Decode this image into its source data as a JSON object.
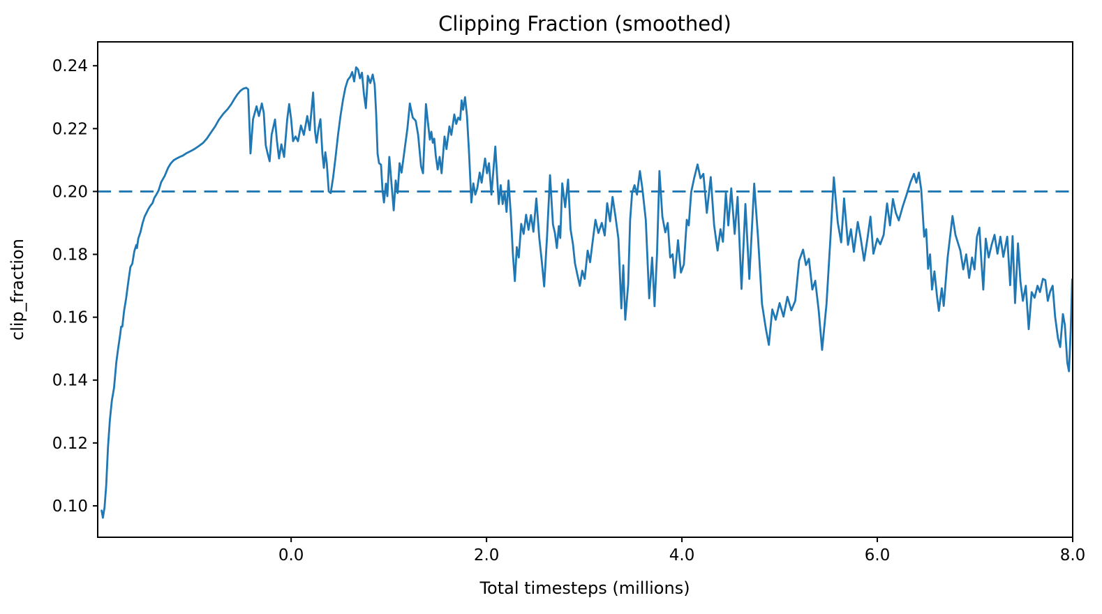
{
  "figure": {
    "background": "#ffffff",
    "spine_color": "#000000",
    "text_color": "#000000"
  },
  "chart_data": {
    "type": "line",
    "title": "Clipping Fraction (smoothed)",
    "xlabel": "Total timesteps (millions)",
    "ylabel": "clip_fraction",
    "xlim": [
      -1.98,
      8.0
    ],
    "ylim": [
      0.09,
      0.2476
    ],
    "grid": false,
    "legend_position": "none",
    "xticks": {
      "values": [
        0.0,
        2.0,
        4.0,
        6.0,
        8.0
      ],
      "labels": [
        "0.0",
        "2.0",
        "4.0",
        "6.0",
        "8.0"
      ]
    },
    "yticks": {
      "values": [
        0.1,
        0.12,
        0.14,
        0.16,
        0.18,
        0.2,
        0.22,
        0.24
      ],
      "labels": [
        "0.10",
        "0.12",
        "0.14",
        "0.16",
        "0.18",
        "0.20",
        "0.22",
        "0.24"
      ]
    },
    "reference_line": {
      "y": 0.2,
      "style": "dashed",
      "color": "#1f77b4",
      "width": 2.8,
      "dash": [
        19,
        11.5
      ]
    },
    "series": [
      {
        "name": "clip_fraction",
        "color": "#1f77b4",
        "width": 2.8,
        "x": [
          -1.94,
          -1.927,
          -1.91,
          -1.893,
          -1.875,
          -1.855,
          -1.835,
          -1.813,
          -1.79,
          -1.771,
          -1.75,
          -1.74,
          -1.728,
          -1.71,
          -1.689,
          -1.668,
          -1.645,
          -1.626,
          -1.605,
          -1.585,
          -1.578,
          -1.565,
          -1.543,
          -1.52,
          -1.5,
          -1.481,
          -1.46,
          -1.44,
          -1.419,
          -1.4,
          -1.38,
          -1.357,
          -1.33,
          -1.295,
          -1.26,
          -1.233,
          -1.2,
          -1.171,
          -1.14,
          -1.109,
          -1.07,
          -1.026,
          -0.99,
          -0.943,
          -0.9,
          -0.861,
          -0.82,
          -0.778,
          -0.74,
          -0.695,
          -0.65,
          -0.612,
          -0.58,
          -0.55,
          -0.52,
          -0.49,
          -0.46,
          -0.44,
          -0.416,
          -0.39,
          -0.354,
          -0.33,
          -0.3,
          -0.28,
          -0.26,
          -0.24,
          -0.22,
          -0.2,
          -0.165,
          -0.145,
          -0.124,
          -0.1,
          -0.072,
          -0.04,
          -0.02,
          0.0,
          0.02,
          0.045,
          0.07,
          0.1,
          0.13,
          0.165,
          0.19,
          0.225,
          0.245,
          0.26,
          0.28,
          0.3,
          0.32,
          0.335,
          0.35,
          0.365,
          0.385,
          0.405,
          0.43,
          0.455,
          0.48,
          0.505,
          0.53,
          0.555,
          0.58,
          0.605,
          0.625,
          0.645,
          0.665,
          0.685,
          0.705,
          0.725,
          0.745,
          0.765,
          0.785,
          0.81,
          0.835,
          0.855,
          0.87,
          0.885,
          0.9,
          0.92,
          0.935,
          0.95,
          0.97,
          0.985,
          1.005,
          1.03,
          1.05,
          1.07,
          1.09,
          1.11,
          1.13,
          1.16,
          1.19,
          1.215,
          1.245,
          1.275,
          1.3,
          1.33,
          1.35,
          1.38,
          1.4,
          1.42,
          1.435,
          1.45,
          1.465,
          1.48,
          1.5,
          1.52,
          1.54,
          1.57,
          1.59,
          1.62,
          1.64,
          1.67,
          1.69,
          1.71,
          1.73,
          1.745,
          1.76,
          1.78,
          1.8,
          1.82,
          1.845,
          1.865,
          1.885,
          1.905,
          1.93,
          1.95,
          1.985,
          2.005,
          2.025,
          2.05,
          2.09,
          2.125,
          2.145,
          2.165,
          2.185,
          2.205,
          2.225,
          2.25,
          2.27,
          2.29,
          2.31,
          2.33,
          2.355,
          2.38,
          2.405,
          2.43,
          2.455,
          2.48,
          2.51,
          2.54,
          2.565,
          2.59,
          2.62,
          2.65,
          2.68,
          2.7,
          2.72,
          2.74,
          2.755,
          2.775,
          2.805,
          2.835,
          2.86,
          2.885,
          2.905,
          2.93,
          2.955,
          2.98,
          3.005,
          3.035,
          3.06,
          3.09,
          3.115,
          3.145,
          3.18,
          3.21,
          3.235,
          3.265,
          3.29,
          3.32,
          3.35,
          3.38,
          3.4,
          3.42,
          3.45,
          3.47,
          3.49,
          3.515,
          3.54,
          3.57,
          3.595,
          3.63,
          3.665,
          3.695,
          3.72,
          3.745,
          3.77,
          3.8,
          3.83,
          3.855,
          3.88,
          3.905,
          3.925,
          3.96,
          3.99,
          4.02,
          4.05,
          4.07,
          4.095,
          4.125,
          4.16,
          4.19,
          4.22,
          4.255,
          4.295,
          4.33,
          4.365,
          4.395,
          4.42,
          4.45,
          4.475,
          4.505,
          4.54,
          4.57,
          4.61,
          4.65,
          4.69,
          4.74,
          4.78,
          4.82,
          4.86,
          4.89,
          4.925,
          4.96,
          5.0,
          5.04,
          5.08,
          5.12,
          5.16,
          5.2,
          5.24,
          5.27,
          5.3,
          5.335,
          5.365,
          5.4,
          5.435,
          5.48,
          5.52,
          5.555,
          5.595,
          5.63,
          5.66,
          5.7,
          5.73,
          5.76,
          5.8,
          5.83,
          5.865,
          5.9,
          5.93,
          5.96,
          6.0,
          6.03,
          6.065,
          6.1,
          6.13,
          6.16,
          6.19,
          6.22,
          6.26,
          6.3,
          6.34,
          6.375,
          6.4,
          6.425,
          6.45,
          6.48,
          6.5,
          6.52,
          6.54,
          6.56,
          6.585,
          6.61,
          6.63,
          6.66,
          6.68,
          6.72,
          6.77,
          6.8,
          6.85,
          6.88,
          6.91,
          6.94,
          6.97,
          6.995,
          7.02,
          7.045,
          7.065,
          7.085,
          7.11,
          7.14,
          7.17,
          7.2,
          7.23,
          7.26,
          7.29,
          7.33,
          7.36,
          7.385,
          7.41,
          7.44,
          7.465,
          7.49,
          7.52,
          7.55,
          7.58,
          7.61,
          7.64,
          7.665,
          7.695,
          7.72,
          7.745,
          7.77,
          7.795,
          7.82,
          7.85,
          7.872,
          7.9,
          7.92,
          7.945,
          7.962,
          7.98,
          7.995
        ],
        "y": [
          0.0985,
          0.0962,
          0.0995,
          0.1065,
          0.1185,
          0.1275,
          0.1335,
          0.1375,
          0.1455,
          0.15,
          0.1545,
          0.157,
          0.157,
          0.162,
          0.166,
          0.171,
          0.176,
          0.177,
          0.181,
          0.183,
          0.182,
          0.185,
          0.187,
          0.19,
          0.192,
          0.1932,
          0.1945,
          0.1955,
          0.1963,
          0.198,
          0.199,
          0.2003,
          0.203,
          0.2049,
          0.2075,
          0.2089,
          0.21,
          0.2105,
          0.211,
          0.2114,
          0.2122,
          0.2129,
          0.2135,
          0.2145,
          0.2155,
          0.2169,
          0.2188,
          0.2207,
          0.2228,
          0.2247,
          0.2262,
          0.2278,
          0.2295,
          0.2309,
          0.232,
          0.2327,
          0.233,
          0.2325,
          0.2121,
          0.223,
          0.2271,
          0.224,
          0.228,
          0.225,
          0.2147,
          0.212,
          0.2096,
          0.218,
          0.2229,
          0.216,
          0.2105,
          0.215,
          0.211,
          0.223,
          0.2278,
          0.223,
          0.216,
          0.2175,
          0.216,
          0.221,
          0.218,
          0.224,
          0.2195,
          0.2315,
          0.219,
          0.2155,
          0.22,
          0.223,
          0.212,
          0.2075,
          0.2125,
          0.209,
          0.2,
          0.1995,
          0.2045,
          0.211,
          0.218,
          0.224,
          0.229,
          0.233,
          0.2355,
          0.2365,
          0.238,
          0.235,
          0.2395,
          0.2388,
          0.236,
          0.2378,
          0.231,
          0.2265,
          0.2368,
          0.2345,
          0.2372,
          0.234,
          0.225,
          0.212,
          0.209,
          0.2085,
          0.2005,
          0.1965,
          0.2025,
          0.1985,
          0.211,
          0.2015,
          0.194,
          0.2035,
          0.1995,
          0.209,
          0.206,
          0.213,
          0.22,
          0.228,
          0.2235,
          0.2225,
          0.218,
          0.208,
          0.2058,
          0.2278,
          0.222,
          0.2165,
          0.219,
          0.2155,
          0.2168,
          0.2115,
          0.207,
          0.211,
          0.2058,
          0.2175,
          0.2135,
          0.2207,
          0.218,
          0.2245,
          0.2215,
          0.2235,
          0.2228,
          0.229,
          0.226,
          0.23,
          0.224,
          0.213,
          0.1965,
          0.2026,
          0.199,
          0.201,
          0.206,
          0.2028,
          0.2105,
          0.2058,
          0.209,
          0.199,
          0.2143,
          0.196,
          0.202,
          0.196,
          0.2,
          0.1935,
          0.2035,
          0.192,
          0.18,
          0.1715,
          0.1823,
          0.179,
          0.1897,
          0.1865,
          0.1926,
          0.1878,
          0.1925,
          0.1872,
          0.1978,
          0.1852,
          0.178,
          0.1698,
          0.186,
          0.2052,
          0.1895,
          0.1868,
          0.182,
          0.189,
          0.1852,
          0.2026,
          0.195,
          0.2038,
          0.188,
          0.1832,
          0.1772,
          0.1735,
          0.17,
          0.1748,
          0.1722,
          0.1812,
          0.1775,
          0.185,
          0.191,
          0.1868,
          0.19,
          0.186,
          0.1963,
          0.1905,
          0.1983,
          0.192,
          0.185,
          0.1628,
          0.1765,
          0.1592,
          0.1705,
          0.191,
          0.1995,
          0.202,
          0.199,
          0.2065,
          0.201,
          0.191,
          0.166,
          0.179,
          0.1635,
          0.18,
          0.2065,
          0.192,
          0.187,
          0.19,
          0.179,
          0.18,
          0.1725,
          0.1845,
          0.1742,
          0.1768,
          0.191,
          0.1892,
          0.1998,
          0.2042,
          0.2086,
          0.2042,
          0.2056,
          0.1932,
          0.2046,
          0.1892,
          0.1812,
          0.188,
          0.184,
          0.1995,
          0.1892,
          0.201,
          0.1865,
          0.1983,
          0.169,
          0.196,
          0.1722,
          0.2025,
          0.185,
          0.1642,
          0.1562,
          0.1512,
          0.1625,
          0.1592,
          0.1645,
          0.1602,
          0.1665,
          0.1622,
          0.1652,
          0.178,
          0.1815,
          0.1766,
          0.1786,
          0.1688,
          0.1716,
          0.1622,
          0.1496,
          0.1642,
          0.185,
          0.2045,
          0.1902,
          0.1838,
          0.1978,
          0.183,
          0.188,
          0.1808,
          0.1903,
          0.1852,
          0.178,
          0.1852,
          0.192,
          0.1802,
          0.185,
          0.1832,
          0.1862,
          0.1962,
          0.1892,
          0.1976,
          0.1932,
          0.1908,
          0.1952,
          0.199,
          0.203,
          0.2056,
          0.2028,
          0.206,
          0.2005,
          0.1856,
          0.188,
          0.1754,
          0.18,
          0.1688,
          0.1746,
          0.167,
          0.162,
          0.1692,
          0.1636,
          0.179,
          0.1922,
          0.1862,
          0.1812,
          0.1752,
          0.18,
          0.1725,
          0.179,
          0.1752,
          0.1856,
          0.1885,
          0.178,
          0.1688,
          0.185,
          0.179,
          0.183,
          0.1862,
          0.1802,
          0.1856,
          0.1792,
          0.1856,
          0.1702,
          0.1858,
          0.1645,
          0.1835,
          0.1714,
          0.1652,
          0.17,
          0.1562,
          0.168,
          0.1662,
          0.17,
          0.168,
          0.1722,
          0.1718,
          0.1652,
          0.1682,
          0.17,
          0.1602,
          0.1532,
          0.1505,
          0.161,
          0.1575,
          0.1455,
          0.1428,
          0.156,
          0.172
        ]
      }
    ]
  }
}
